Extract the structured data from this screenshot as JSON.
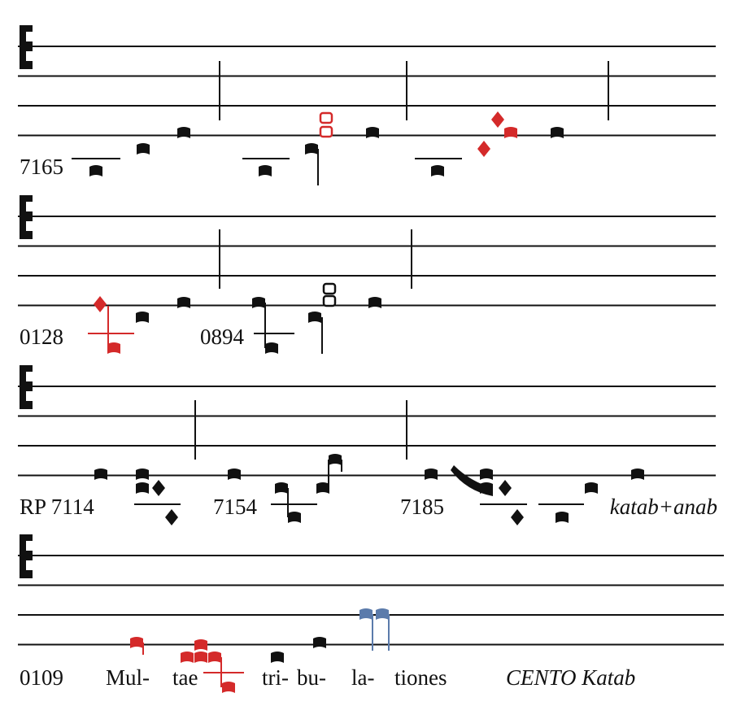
{
  "systems": [
    {
      "labels": [
        "7165"
      ]
    },
    {
      "labels": [
        "0128",
        "0894"
      ]
    },
    {
      "labels": [
        "RP 7114",
        "7154",
        "7185"
      ],
      "annotation": "katab+anab"
    },
    {
      "labels": [
        "0109"
      ],
      "lyrics": [
        "Mul-",
        "tae",
        "tri-",
        "bu-",
        "la-",
        "tiones"
      ],
      "annotation": "CENTO Katab"
    }
  ]
}
